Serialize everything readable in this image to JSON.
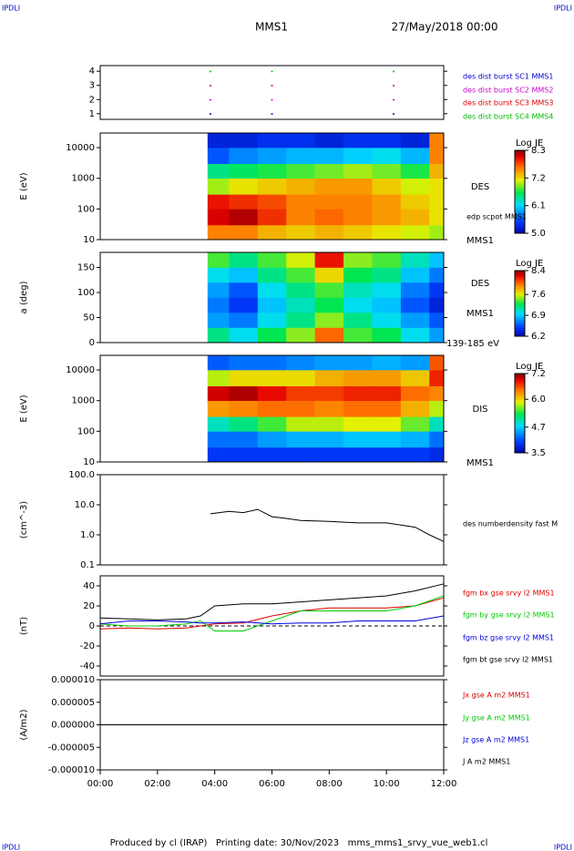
{
  "header": {
    "corner_tl": "IPDLI",
    "corner_tr": "IPDLI",
    "corner_bl": "IPDLI",
    "corner_br": "IPDLI",
    "title": "MMS1",
    "date": "27/May/2018 00:00",
    "footer": "Produced by cl (IRAP)   Printing date: 30/Nov/2023   mms_mms1_srvy_vue_web1.cl"
  },
  "chart_data": [
    {
      "type": "scatter",
      "xlim": [
        0,
        12
      ],
      "ylim": [
        0.6,
        4.4
      ],
      "yticks": [
        1,
        2,
        3,
        4
      ],
      "x": [
        3.85,
        6.0,
        10.25
      ],
      "series": [
        {
          "name": "des dist burst SC1 MMS1",
          "color": "#0000cc",
          "values": [
            1,
            1,
            1
          ]
        },
        {
          "name": "des dist burst SC2 MMS2",
          "color": "#cc00cc",
          "values": [
            2,
            2,
            2
          ]
        },
        {
          "name": "des dist burst SC3 MMS3",
          "color": "#dd0000",
          "values": [
            3,
            3,
            3
          ]
        },
        {
          "name": "des dist burst SC4 MMS4",
          "color": "#00bb00",
          "values": [
            4,
            4,
            4
          ]
        }
      ]
    },
    {
      "type": "heatmap",
      "ylabel": "E (eV)",
      "log": true,
      "xlim": [
        0,
        12
      ],
      "ylim": [
        10,
        30000
      ],
      "yticks": [
        10,
        100,
        1000,
        10000
      ],
      "xbins": [
        3.75,
        4.5,
        5.5,
        6.5,
        7.5,
        8.5,
        9.5,
        10.5,
        11.5,
        12
      ],
      "ybins": [
        10,
        30,
        100,
        300,
        1000,
        3000,
        10000,
        30000
      ],
      "values": [
        [
          7.6,
          8.1,
          8.0,
          7.0,
          6.5,
          5.6,
          5.3
        ],
        [
          7.6,
          8.2,
          7.9,
          7.2,
          6.6,
          5.8,
          5.3
        ],
        [
          7.4,
          7.9,
          7.8,
          7.3,
          6.7,
          5.9,
          5.4
        ],
        [
          7.3,
          7.6,
          7.6,
          7.4,
          6.8,
          6.0,
          5.4
        ],
        [
          7.4,
          7.7,
          7.6,
          7.5,
          6.9,
          6.0,
          5.3
        ],
        [
          7.3,
          7.6,
          7.6,
          7.5,
          7.0,
          6.1,
          5.4
        ],
        [
          7.2,
          7.5,
          7.5,
          7.3,
          6.9,
          6.2,
          5.4
        ],
        [
          7.1,
          7.4,
          7.3,
          7.1,
          6.7,
          6.0,
          5.3
        ],
        [
          7.0,
          7.2,
          7.2,
          7.2,
          7.4,
          7.6,
          7.6
        ]
      ],
      "colorbar": {
        "label": "Log JE",
        "clim": [
          5,
          8.3
        ],
        "ticks": [
          8.3,
          7.2,
          6.1,
          {
            "value": 5,
            "label": "5.0"
          }
        ]
      },
      "annotations": [
        "DES",
        "edp scpot MMS1",
        "MMS1"
      ]
    },
    {
      "type": "heatmap",
      "ylabel": "a (deg)",
      "xlim": [
        0,
        12
      ],
      "ylim": [
        0,
        180
      ],
      "yticks": [
        0,
        50,
        100,
        150
      ],
      "xbins": [
        3.75,
        4.5,
        5.5,
        6.5,
        7.5,
        8.5,
        9.5,
        10.5,
        11.5,
        12
      ],
      "ybins": [
        0,
        30,
        60,
        90,
        120,
        150,
        180
      ],
      "values": [
        [
          7.2,
          6.8,
          6.7,
          6.8,
          7.0,
          7.4
        ],
        [
          7.0,
          6.7,
          6.5,
          6.6,
          6.9,
          7.2
        ],
        [
          7.3,
          7.0,
          6.9,
          7.0,
          7.2,
          7.4
        ],
        [
          7.5,
          7.2,
          7.1,
          7.2,
          7.4,
          7.6
        ],
        [
          8.0,
          7.5,
          7.3,
          7.4,
          7.7,
          8.2
        ],
        [
          7.4,
          7.2,
          7.0,
          7.1,
          7.3,
          7.5
        ],
        [
          7.3,
          7.0,
          6.9,
          7.0,
          7.2,
          7.4
        ],
        [
          7.0,
          6.8,
          6.6,
          6.7,
          6.9,
          7.1
        ],
        [
          6.8,
          6.6,
          6.4,
          6.5,
          6.7,
          6.9
        ]
      ],
      "colorbar": {
        "label": "Log JE",
        "clim": [
          6.2,
          8.4
        ],
        "ticks": [
          8.4,
          7.6,
          6.9,
          6.2
        ]
      },
      "annotations": [
        "DES",
        "MMS1",
        "139-185 eV"
      ]
    },
    {
      "type": "heatmap",
      "ylabel": "E (eV)",
      "log": true,
      "xlim": [
        0,
        12
      ],
      "ylim": [
        10,
        30000
      ],
      "yticks": [
        10,
        100,
        1000,
        10000
      ],
      "xbins": [
        3.75,
        4.5,
        5.5,
        6.5,
        7.5,
        8.5,
        9.5,
        10.5,
        11.5,
        12
      ],
      "ybins": [
        10,
        30,
        100,
        300,
        1000,
        3000,
        10000,
        30000
      ],
      "values": [
        [
          4.0,
          4.3,
          5.0,
          6.3,
          7.0,
          5.8,
          4.2
        ],
        [
          4.0,
          4.3,
          5.2,
          6.4,
          7.1,
          6.0,
          4.3
        ],
        [
          4.0,
          4.5,
          5.5,
          6.5,
          6.9,
          6.0,
          4.3
        ],
        [
          4.0,
          4.6,
          5.8,
          6.5,
          6.7,
          6.0,
          4.4
        ],
        [
          4.0,
          4.6,
          5.8,
          6.4,
          6.7,
          6.2,
          4.5
        ],
        [
          4.0,
          4.7,
          5.9,
          6.5,
          6.8,
          6.3,
          4.5
        ],
        [
          4.0,
          4.7,
          5.9,
          6.5,
          6.8,
          6.3,
          4.6
        ],
        [
          4.0,
          4.6,
          5.6,
          6.2,
          6.5,
          6.1,
          4.5
        ],
        [
          3.9,
          4.3,
          5.0,
          5.8,
          6.4,
          6.8,
          6.6
        ]
      ],
      "colorbar": {
        "label": "Log JE",
        "clim": [
          3.5,
          7.2
        ],
        "ticks": [
          7.2,
          {
            "value": 6,
            "label": "6.0"
          },
          4.7,
          3.5
        ]
      },
      "annotations": [
        "DIS",
        "MMS1"
      ]
    },
    {
      "type": "line",
      "ylabel": "(cm^-3)",
      "log": true,
      "xlim": [
        0,
        12
      ],
      "ylim": [
        0.1,
        100
      ],
      "yticks": [
        0.1,
        {
          "value": 1,
          "label": "1.0"
        },
        {
          "value": 10,
          "label": "10.0"
        },
        {
          "value": 100,
          "label": "100.0"
        }
      ],
      "x": [
        3.85,
        4.5,
        5,
        5.5,
        6,
        6.5,
        7,
        8,
        9,
        10,
        11,
        11.5,
        12
      ],
      "series": [
        {
          "name": "des numberdensity fast M",
          "color": "#000000",
          "values": [
            5,
            6,
            5.5,
            7,
            4,
            3.5,
            3,
            2.8,
            2.5,
            2.5,
            1.8,
            1.0,
            0.6
          ]
        }
      ]
    },
    {
      "type": "line",
      "ylabel": "(nT)",
      "xlim": [
        0,
        12
      ],
      "ylim": [
        -50,
        50
      ],
      "yticks": [
        -40,
        -20,
        0,
        20,
        40
      ],
      "x": [
        0,
        1,
        2,
        3,
        3.5,
        4,
        5,
        6,
        7,
        8,
        9,
        10,
        11,
        12
      ],
      "series": [
        {
          "name": "fgm bx gse srvy l2 MMS1",
          "color": "#dd0000",
          "values": [
            -3,
            -2,
            -3,
            -2,
            0,
            2,
            3,
            10,
            15,
            18,
            18,
            18,
            20,
            28
          ]
        },
        {
          "name": "fgm by gse srvy l2 MMS1",
          "color": "#00cc00",
          "values": [
            2,
            0,
            0,
            2,
            5,
            -5,
            -5,
            5,
            15,
            15,
            15,
            15,
            20,
            30
          ]
        },
        {
          "name": "fgm bz gse srvy l2 MMS1",
          "color": "#0000dd",
          "values": [
            2,
            5,
            5,
            4,
            3,
            3,
            4,
            2,
            3,
            3,
            5,
            5,
            5,
            10
          ]
        },
        {
          "name": "fgm bt gse srvy l2 MMS1",
          "color": "#000000",
          "values": [
            8,
            7,
            6,
            7,
            10,
            20,
            22,
            22,
            24,
            26,
            28,
            30,
            35,
            42
          ]
        }
      ]
    },
    {
      "type": "line",
      "ylabel": "(A/m2)",
      "xlim": [
        0,
        12
      ],
      "ylim": [
        -1e-05,
        1e-05
      ],
      "yticks": [
        {
          "value": -1e-05,
          "label": "-0.000010"
        },
        {
          "value": -5e-06,
          "label": "-0.000005"
        },
        {
          "value": 0,
          "label": "0.000000"
        },
        {
          "value": 5e-06,
          "label": "0.000005"
        },
        {
          "value": 1e-05,
          "label": "0.000010"
        }
      ],
      "xticks": [
        {
          "value": 0,
          "label": "00:00"
        },
        {
          "value": 2,
          "label": "02:00"
        },
        {
          "value": 4,
          "label": "04:00"
        },
        {
          "value": 6,
          "label": "06:00"
        },
        {
          "value": 8,
          "label": "08:00"
        },
        {
          "value": 10,
          "label": "10:00"
        },
        {
          "value": 12,
          "label": "12:00"
        }
      ],
      "x": [
        0,
        12
      ],
      "series": [
        {
          "name": "Jx gse A m2 MMS1",
          "color": "#dd0000",
          "values": [
            0,
            0
          ]
        },
        {
          "name": "Jy gse A m2 MMS1",
          "color": "#00cc00",
          "values": [
            0,
            0
          ]
        },
        {
          "name": "Jz gse A m2 MMS1",
          "color": "#0000dd",
          "values": [
            0,
            0
          ]
        },
        {
          "name": "J A m2 MMS1",
          "color": "#000000",
          "values": [
            0,
            0
          ]
        }
      ]
    }
  ]
}
